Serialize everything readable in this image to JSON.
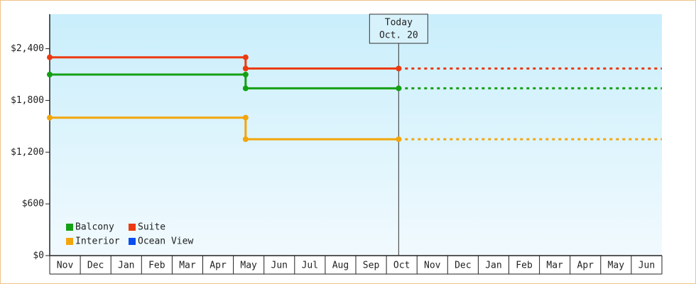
{
  "chart_data": {
    "type": "step-line",
    "x": [
      0,
      6.4,
      6.4,
      11.4
    ],
    "xlim": [
      0,
      20
    ],
    "months": [
      "Nov",
      "Dec",
      "Jan",
      "Feb",
      "Mar",
      "Apr",
      "May",
      "Jun",
      "Jul",
      "Aug",
      "Sep",
      "Oct",
      "Nov",
      "Dec",
      "Jan",
      "Feb",
      "Mar",
      "Apr",
      "May",
      "Jun"
    ],
    "ylim": [
      0,
      2800
    ],
    "yticks": [
      {
        "value": 0,
        "label": "$0"
      },
      {
        "value": 600,
        "label": "$600"
      },
      {
        "value": 1200,
        "label": "$1,200"
      },
      {
        "value": 1800,
        "label": "$1,800"
      },
      {
        "value": 2400,
        "label": "$2,400"
      }
    ],
    "series": [
      {
        "name": "Balcony",
        "color": "#14a014",
        "values": [
          2100,
          2100,
          1940,
          1940
        ]
      },
      {
        "name": "Suite",
        "color": "#ec3a10",
        "values": [
          2300,
          2300,
          2170,
          2170
        ]
      },
      {
        "name": "Interior",
        "color": "#f2a60c",
        "values": [
          1600,
          1600,
          1350,
          1350
        ]
      },
      {
        "name": "Ocean View",
        "color": "#0a4ef0",
        "values": [
          null,
          null,
          null,
          null
        ]
      }
    ],
    "today": {
      "x": 11.4,
      "label": [
        "Today",
        "Oct. 20"
      ]
    },
    "projection": true
  }
}
